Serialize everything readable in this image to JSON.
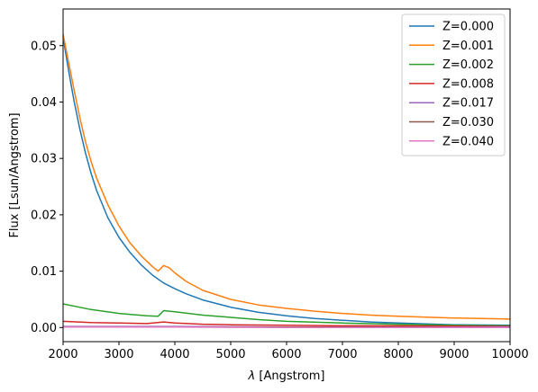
{
  "chart_data": {
    "type": "line",
    "title": "",
    "xlabel_symbol": "λ",
    "xlabel_rest": " [Angstrom]",
    "ylabel": "Flux [Lsun/Angstrom]",
    "xlim": [
      2000,
      10000
    ],
    "ylim": [
      -0.0025,
      0.0565
    ],
    "xticks": [
      2000,
      3000,
      4000,
      5000,
      6000,
      7000,
      8000,
      9000,
      10000
    ],
    "xtick_labels": [
      "2000",
      "3000",
      "4000",
      "5000",
      "6000",
      "7000",
      "8000",
      "9000",
      "10000"
    ],
    "yticks": [
      0.0,
      0.01,
      0.02,
      0.03,
      0.04,
      0.05
    ],
    "ytick_labels": [
      "0.00",
      "0.01",
      "0.02",
      "0.03",
      "0.04",
      "0.05"
    ],
    "grid": false,
    "legend_position": "top-right",
    "series": [
      {
        "name": "Z=0.000",
        "color": "#1f77b4",
        "x": [
          2000,
          2100,
          2200,
          2300,
          2400,
          2500,
          2600,
          2800,
          3000,
          3200,
          3400,
          3600,
          3800,
          4000,
          4200,
          4500,
          5000,
          5500,
          6000,
          6500,
          7000,
          7500,
          8000,
          9000,
          10000
        ],
        "y": [
          0.0515,
          0.0455,
          0.04,
          0.0352,
          0.031,
          0.0274,
          0.0243,
          0.0195,
          0.016,
          0.0133,
          0.0111,
          0.0093,
          0.0079,
          0.0069,
          0.006,
          0.0049,
          0.0036,
          0.0027,
          0.0021,
          0.0016,
          0.0013,
          0.001,
          0.0008,
          0.0005,
          0.0004
        ]
      },
      {
        "name": "Z=0.001",
        "color": "#ff7f0e",
        "x": [
          2000,
          2100,
          2200,
          2300,
          2400,
          2500,
          2600,
          2800,
          3000,
          3200,
          3400,
          3600,
          3700,
          3800,
          3900,
          4000,
          4200,
          4500,
          5000,
          5500,
          6000,
          6500,
          7000,
          7500,
          8000,
          9000,
          10000
        ],
        "y": [
          0.052,
          0.047,
          0.042,
          0.0372,
          0.033,
          0.0295,
          0.0265,
          0.0218,
          0.018,
          0.015,
          0.0127,
          0.0108,
          0.01,
          0.011,
          0.0106,
          0.0097,
          0.0082,
          0.0066,
          0.005,
          0.004,
          0.0034,
          0.0029,
          0.0025,
          0.0022,
          0.002,
          0.0017,
          0.0015
        ]
      },
      {
        "name": "Z=0.002",
        "color": "#2ca02c",
        "x": [
          2000,
          2500,
          3000,
          3500,
          3700,
          3800,
          4000,
          4500,
          5000,
          5500,
          6000,
          7000,
          8000,
          9000,
          10000
        ],
        "y": [
          0.0042,
          0.0032,
          0.0025,
          0.0021,
          0.002,
          0.003,
          0.0028,
          0.0022,
          0.0018,
          0.0014,
          0.0011,
          0.0008,
          0.0006,
          0.0004,
          0.0003
        ]
      },
      {
        "name": "Z=0.008",
        "color": "#d62728",
        "x": [
          2000,
          2500,
          3000,
          3500,
          3800,
          4000,
          4500,
          5000,
          6000,
          7000,
          8000,
          10000
        ],
        "y": [
          0.0011,
          0.0009,
          0.0008,
          0.0007,
          0.001,
          0.0008,
          0.0006,
          0.0005,
          0.0004,
          0.0003,
          0.0003,
          0.0002
        ]
      },
      {
        "name": "Z=0.017",
        "color": "#9467bd",
        "x": [
          2000,
          4000,
          6000,
          8000,
          10000
        ],
        "y": [
          0.0002,
          0.0002,
          0.0001,
          0.0001,
          0.0001
        ]
      },
      {
        "name": "Z=0.030",
        "color": "#8c564b",
        "x": [
          2000,
          4000,
          6000,
          8000,
          10000
        ],
        "y": [
          0.0001,
          0.0001,
          0.0001,
          0.0001,
          0.0
        ]
      },
      {
        "name": "Z=0.040",
        "color": "#e377c2",
        "x": [
          2000,
          4000,
          6000,
          8000,
          10000
        ],
        "y": [
          0.0001,
          0.0001,
          0.0,
          0.0,
          0.0
        ]
      }
    ]
  }
}
